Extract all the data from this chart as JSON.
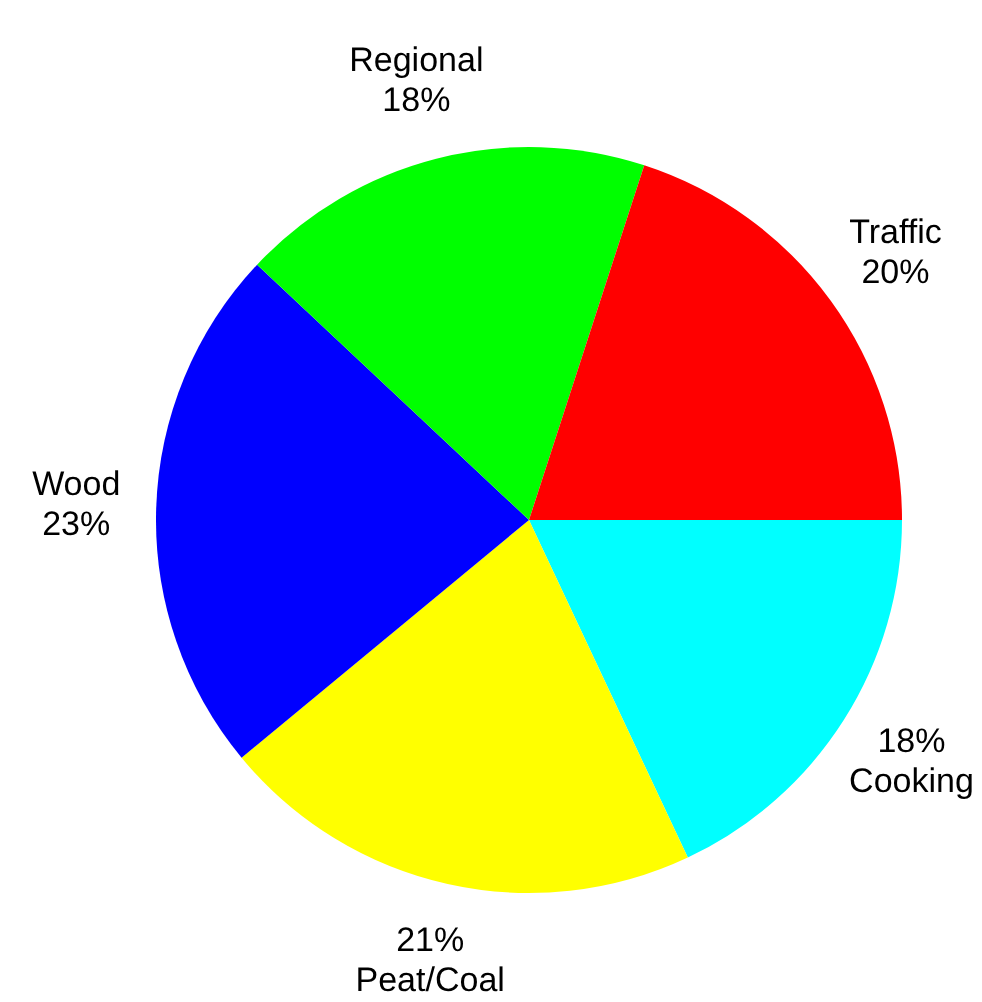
{
  "chart_data": {
    "type": "pie",
    "categories": [
      "Cooking",
      "Peat/Coal",
      "Wood",
      "Regional",
      "Traffic"
    ],
    "values": [
      18,
      21,
      23,
      18,
      20
    ],
    "colors": [
      "#00ffff",
      "#ffff00",
      "#0000ff",
      "#00ff00",
      "#ff0000"
    ],
    "value_labels": [
      "18%",
      "21%",
      "23%",
      "18%",
      "20%"
    ],
    "legend": false
  }
}
